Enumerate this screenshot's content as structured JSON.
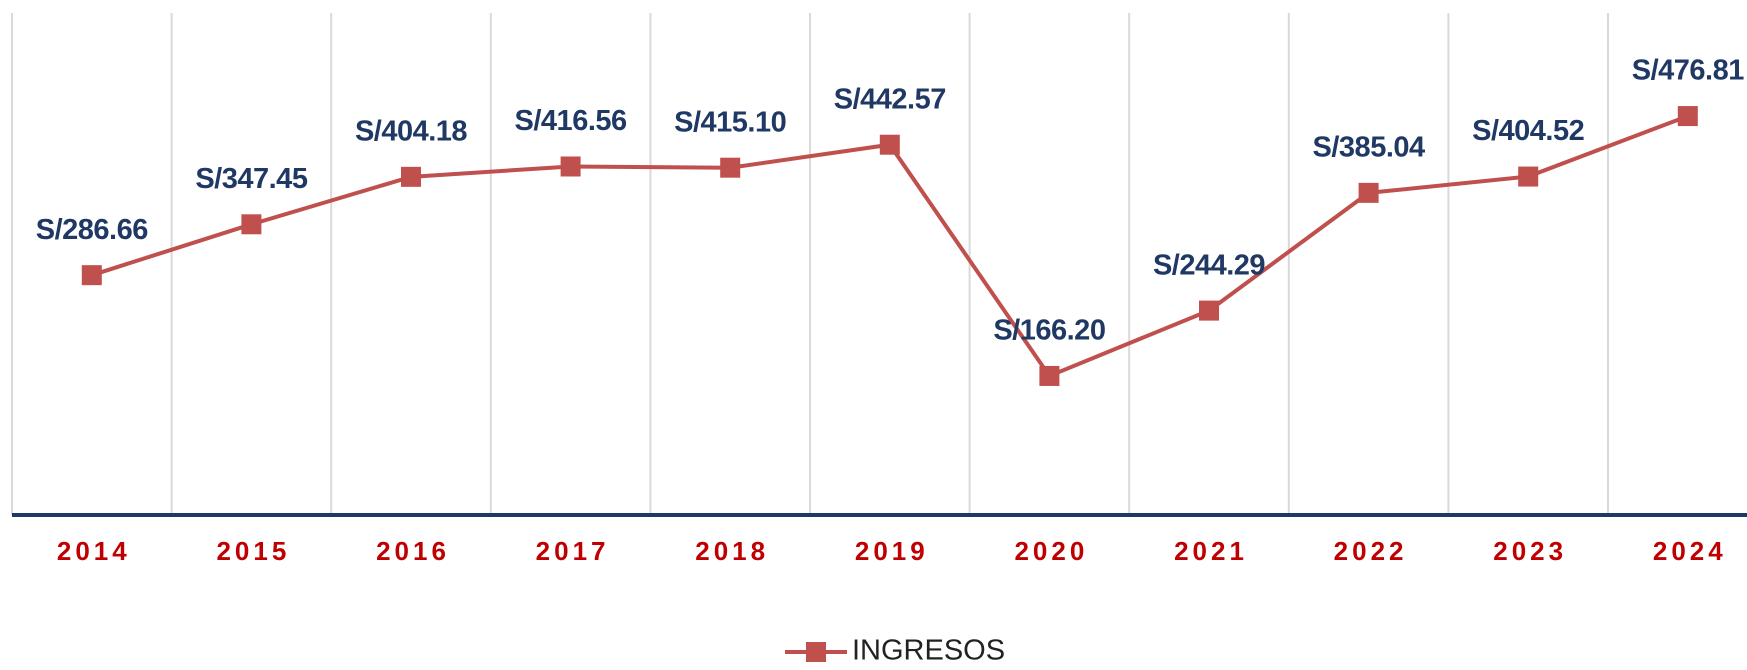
{
  "chart_data": {
    "type": "line",
    "categories": [
      "2014",
      "2015",
      "2016",
      "2017",
      "2018",
      "2019",
      "2020",
      "2021",
      "2022",
      "2023",
      "2024"
    ],
    "series": [
      {
        "name": "INGRESOS",
        "color": "#c0504d",
        "values": [
          286.66,
          347.45,
          404.18,
          416.56,
          415.1,
          442.57,
          166.2,
          244.29,
          385.04,
          404.52,
          476.81
        ],
        "value_labels": [
          "S/286.66",
          "S/347.45",
          "S/404.18",
          "S/416.56",
          "S/415.10",
          "S/442.57",
          "S/166.20",
          "S/244.29",
          "S/385.04",
          "S/404.52",
          "S/476.81"
        ]
      }
    ],
    "ylim": [
      0,
      600
    ],
    "legend": "bottom"
  }
}
